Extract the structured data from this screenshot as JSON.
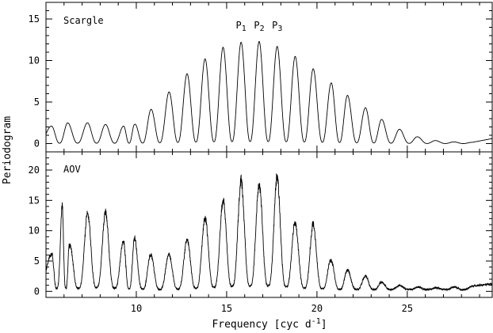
{
  "chart_data": [
    {
      "type": "line",
      "panel_label": "Scargle",
      "xlim": [
        5,
        29.7
      ],
      "ylim": [
        -1,
        17
      ],
      "yticks": [
        0,
        5,
        10,
        15
      ],
      "peak_labels": [
        {
          "text": "P",
          "sub": "1",
          "x": 15.8
        },
        {
          "text": "P",
          "sub": "2",
          "x": 16.8
        },
        {
          "text": "P",
          "sub": "3",
          "x": 17.8
        }
      ],
      "peaks": [
        {
          "x": 5.3,
          "y": 2.1
        },
        {
          "x": 6.2,
          "y": 2.5
        },
        {
          "x": 7.3,
          "y": 2.5
        },
        {
          "x": 8.3,
          "y": 2.3
        },
        {
          "x": 9.3,
          "y": 2.1
        },
        {
          "x": 9.9,
          "y": 2.3
        },
        {
          "x": 10.8,
          "y": 4.1
        },
        {
          "x": 11.8,
          "y": 6.2
        },
        {
          "x": 12.8,
          "y": 8.4
        },
        {
          "x": 13.8,
          "y": 10.2
        },
        {
          "x": 14.8,
          "y": 11.6
        },
        {
          "x": 15.8,
          "y": 12.2
        },
        {
          "x": 16.8,
          "y": 12.3
        },
        {
          "x": 17.8,
          "y": 11.7
        },
        {
          "x": 18.8,
          "y": 10.5
        },
        {
          "x": 19.8,
          "y": 9.0
        },
        {
          "x": 20.8,
          "y": 7.3
        },
        {
          "x": 21.7,
          "y": 5.8
        },
        {
          "x": 22.7,
          "y": 4.3
        },
        {
          "x": 23.6,
          "y": 2.9
        },
        {
          "x": 24.6,
          "y": 1.7
        },
        {
          "x": 25.6,
          "y": 0.8
        },
        {
          "x": 26.6,
          "y": 0.35
        },
        {
          "x": 27.6,
          "y": 0.2
        },
        {
          "x": 28.6,
          "y": 0.15
        }
      ],
      "end_value": 0.6
    },
    {
      "type": "line",
      "panel_label": "AOV",
      "xlim": [
        5,
        29.7
      ],
      "ylim": [
        -1,
        23
      ],
      "yticks": [
        0,
        5,
        10,
        15,
        20
      ],
      "peaks": [
        {
          "x": 5.3,
          "y": 6.0
        },
        {
          "x": 5.9,
          "y": 14.3
        },
        {
          "x": 6.3,
          "y": 7.5
        },
        {
          "x": 7.3,
          "y": 13.0
        },
        {
          "x": 8.3,
          "y": 13.0
        },
        {
          "x": 9.3,
          "y": 8.0
        },
        {
          "x": 9.9,
          "y": 9.0
        },
        {
          "x": 10.8,
          "y": 6.0
        },
        {
          "x": 11.8,
          "y": 6.0
        },
        {
          "x": 12.8,
          "y": 8.5
        },
        {
          "x": 13.8,
          "y": 12.0
        },
        {
          "x": 14.8,
          "y": 15.0
        },
        {
          "x": 15.8,
          "y": 18.3
        },
        {
          "x": 16.8,
          "y": 17.6
        },
        {
          "x": 17.8,
          "y": 19.0
        },
        {
          "x": 18.8,
          "y": 11.0
        },
        {
          "x": 19.8,
          "y": 11.2
        },
        {
          "x": 20.8,
          "y": 5.0
        },
        {
          "x": 21.7,
          "y": 3.5
        },
        {
          "x": 22.7,
          "y": 2.5
        },
        {
          "x": 23.6,
          "y": 1.5
        },
        {
          "x": 24.6,
          "y": 1.0
        },
        {
          "x": 25.6,
          "y": 0.7
        },
        {
          "x": 26.6,
          "y": 0.6
        },
        {
          "x": 27.6,
          "y": 0.7
        },
        {
          "x": 28.6,
          "y": 0.9
        }
      ],
      "end_value": 1.2
    }
  ],
  "xaxis": {
    "label": "Frequency [cyc d",
    "label_sup": "-1",
    "label_end": "]",
    "ticks": [
      10,
      15,
      20,
      25
    ]
  },
  "yaxis": {
    "label": "Periodogram"
  }
}
